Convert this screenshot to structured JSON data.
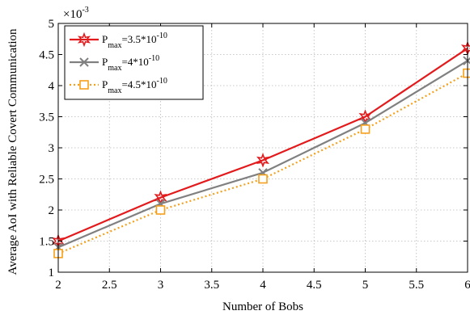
{
  "chart_data": {
    "type": "line",
    "xlabel": "Number of Bobs",
    "ylabel": "Average  AoI with Reliable Covert Communication",
    "y_multiplier": "×10",
    "y_multiplier_exp": "-3",
    "xlim": [
      2,
      6
    ],
    "ylim": [
      1,
      5
    ],
    "xticks": [
      "2",
      "2.5",
      "3",
      "3.5",
      "4",
      "4.5",
      "5",
      "5.5",
      "6"
    ],
    "yticks": [
      "1",
      "1.5",
      "2",
      "2.5",
      "3",
      "3.5",
      "4",
      "4.5",
      "5"
    ],
    "grid": true,
    "legend_position": "top-left",
    "x": [
      2,
      3,
      4,
      5,
      6
    ],
    "series": [
      {
        "name": "P_max=3.5*10^-10",
        "label_base": "P",
        "label_sub": "max",
        "label_main": "=3.5*10",
        "label_sup": "-10",
        "values": [
          1.5,
          2.2,
          2.8,
          3.5,
          4.6
        ],
        "color": "#e31a1c",
        "marker": "star",
        "dash": "solid"
      },
      {
        "name": "P_max=4*10^-10",
        "label_base": "P",
        "label_sub": "max",
        "label_main": "=4*10",
        "label_sup": "-10",
        "values": [
          1.4,
          2.1,
          2.6,
          3.4,
          4.4
        ],
        "color": "#808080",
        "marker": "x",
        "dash": "solid"
      },
      {
        "name": "P_max=4.5*10^-10",
        "label_base": "P",
        "label_sub": "max",
        "label_main": "=4.5*10",
        "label_sup": "-10",
        "values": [
          1.3,
          2.0,
          2.5,
          3.3,
          4.2
        ],
        "color": "#f5a01a",
        "marker": "square",
        "dash": "dotted"
      }
    ]
  }
}
